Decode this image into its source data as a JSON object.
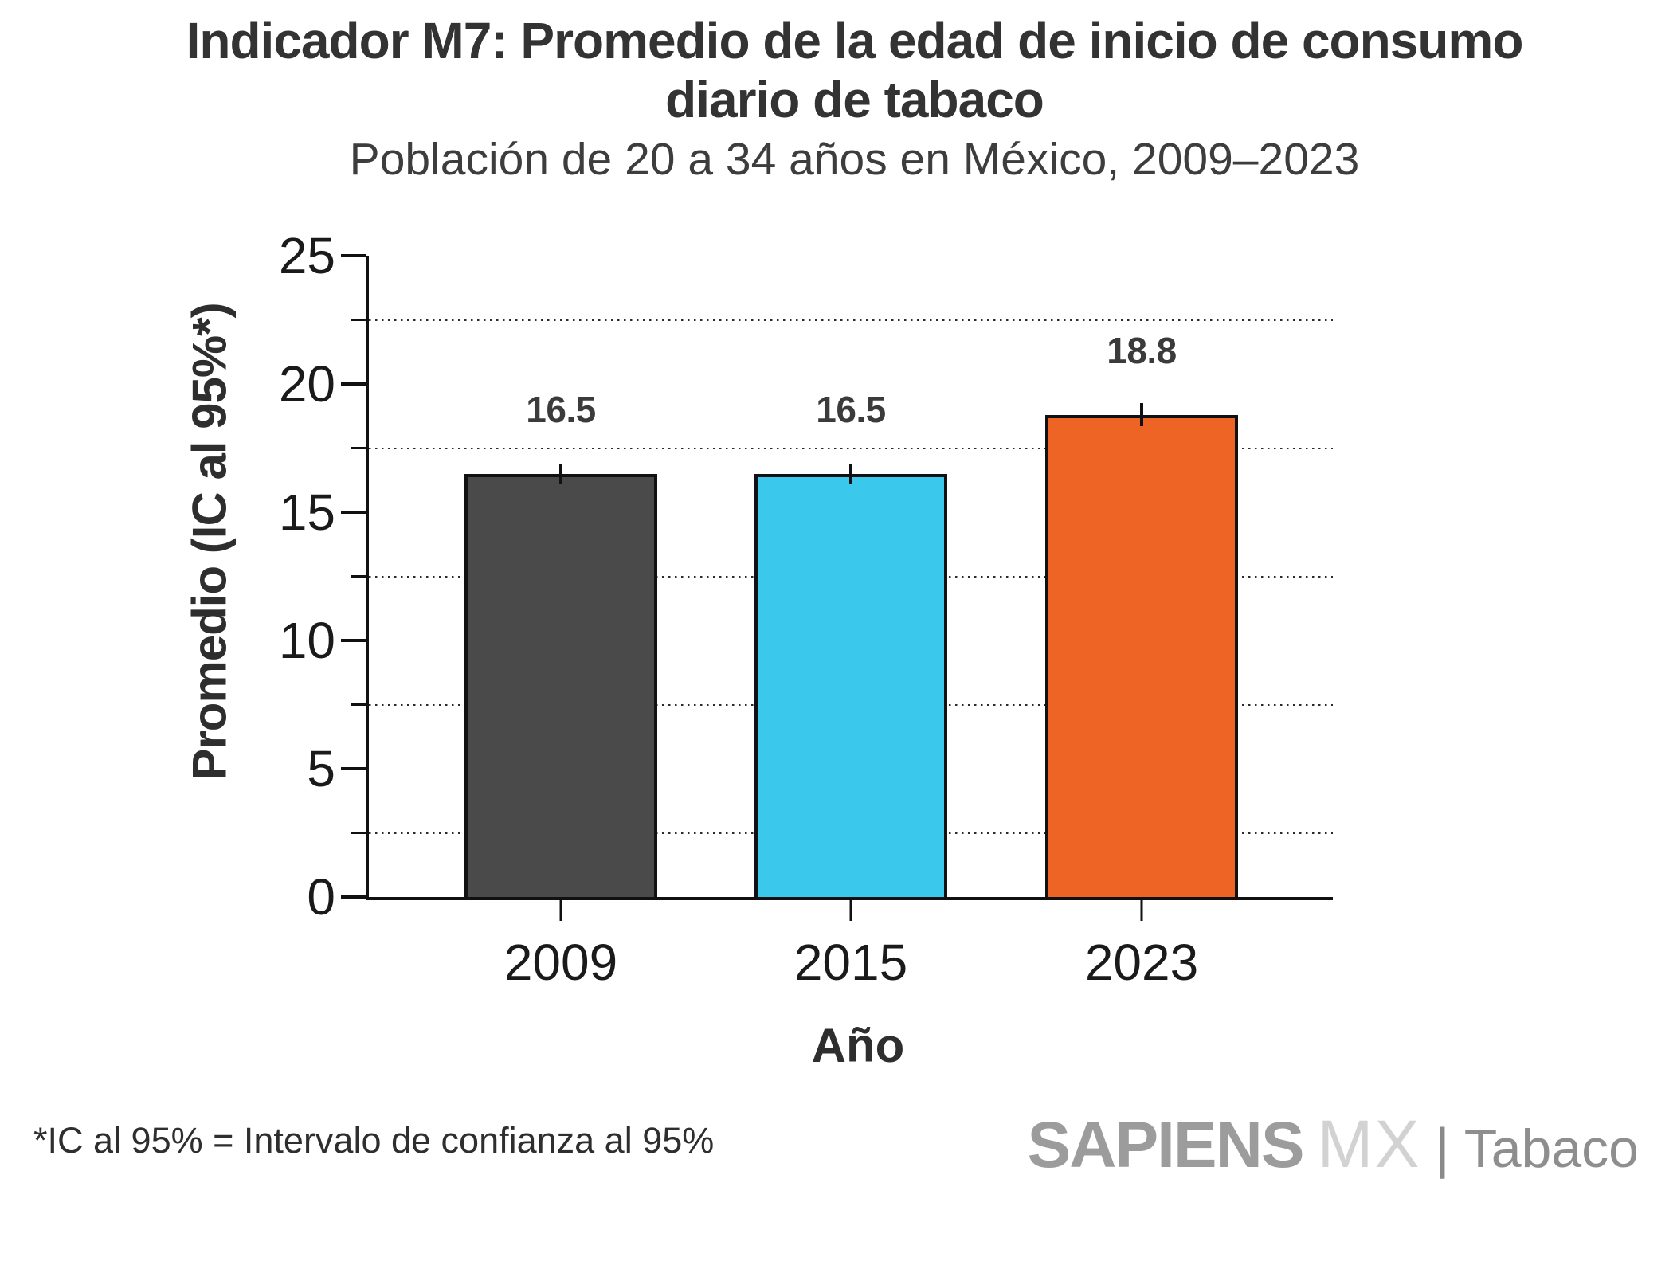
{
  "header": {
    "title_lines": [
      "Indicador M7: Promedio de la edad de inicio de consumo",
      "diario de tabaco"
    ],
    "subtitle": "Población de 20 a 34 años en México, 2009–2023"
  },
  "chart_data": {
    "type": "bar",
    "title": "Indicador M7: Promedio de la edad de inicio de consumo diario de tabaco",
    "subtitle": "Población de 20 a 34 años en México, 2009–2023",
    "categories": [
      "2009",
      "2015",
      "2023"
    ],
    "values": [
      16.5,
      16.5,
      18.8
    ],
    "value_labels": [
      "16.5",
      "16.5",
      "18.8"
    ],
    "ci_95": [
      [
        16.1,
        16.9
      ],
      [
        16.1,
        16.9
      ],
      [
        18.35,
        19.25
      ]
    ],
    "bar_colors": [
      "#4a4a4a",
      "#3ac9ec",
      "#ee6424"
    ],
    "xlabel": "Año",
    "ylabel": "Promedio (IC al 95%*)",
    "ylim": [
      0,
      25
    ],
    "yticks_major": [
      0,
      5,
      10,
      15,
      20,
      25
    ],
    "yticks_minor": [
      2.5,
      7.5,
      12.5,
      17.5,
      22.5
    ],
    "grid": "horizontal dotted lines at minor ticks",
    "legend": "none",
    "error_bars": "capless vertical 95% CI lines"
  },
  "footer": {
    "footnote": "*IC al 95% = Intervalo de confianza al 95%",
    "logo": {
      "part1": "SAPIENS",
      "part2": "MX",
      "separator": "|",
      "part3": "Tabaco"
    }
  }
}
